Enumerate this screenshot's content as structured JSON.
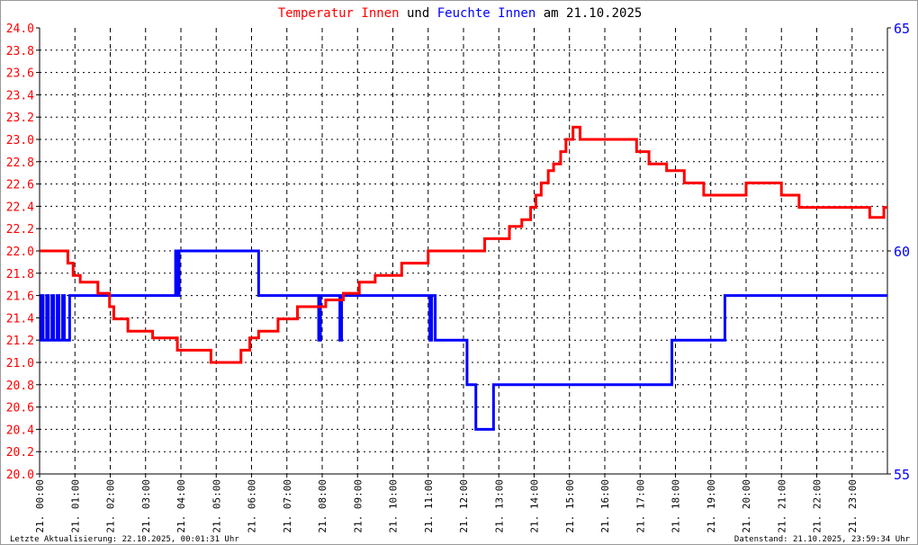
{
  "title": {
    "part1": "Temperatur Innen",
    "part2": "und",
    "part3": "Feuchte Innen",
    "part4": "am 21.10.2025"
  },
  "footer": {
    "left": "Letzte Aktualisierung: 22.10.2025, 00:01:31 Uhr",
    "right": "Datenstand: 21.10.2025, 23:59:34 Uhr"
  },
  "colors": {
    "temperature": "#ff0000",
    "humidity": "#0000ff",
    "grid": "#000000"
  },
  "chart_data": {
    "type": "line",
    "title": "Temperatur Innen und Feuchte Innen am 21.10.2025",
    "grid": true,
    "x_ticks": [
      "21. 00:00",
      "21. 01:00",
      "21. 02:00",
      "21. 03:00",
      "21. 04:00",
      "21. 05:00",
      "21. 06:00",
      "21. 07:00",
      "21. 08:00",
      "21. 09:00",
      "21. 10:00",
      "21. 11:00",
      "21. 12:00",
      "21. 13:00",
      "21. 14:00",
      "21. 15:00",
      "21. 16:00",
      "21. 17:00",
      "21. 18:00",
      "21. 19:00",
      "21. 20:00",
      "21. 21:00",
      "21. 22:00",
      "21. 23:00"
    ],
    "xlim_hours": [
      0,
      24
    ],
    "y_left": {
      "lim": [
        20.0,
        24.0
      ],
      "ticks": [
        "20.0",
        "20.2",
        "20.4",
        "20.6",
        "20.8",
        "21.0",
        "21.2",
        "21.4",
        "21.6",
        "21.8",
        "22.0",
        "22.2",
        "22.4",
        "22.6",
        "22.8",
        "23.0",
        "23.2",
        "23.4",
        "23.6",
        "23.8",
        "24.0"
      ]
    },
    "y_right": {
      "lim": [
        55,
        65
      ],
      "ticks": [
        "55",
        "60",
        "65"
      ]
    },
    "series": [
      {
        "name": "Temperatur Innen",
        "axis": "left",
        "step_points_hour_value": [
          [
            0,
            22.0
          ],
          [
            0.8,
            21.89
          ],
          [
            0.95,
            21.78
          ],
          [
            1.15,
            21.72
          ],
          [
            1.65,
            21.62
          ],
          [
            1.98,
            21.5
          ],
          [
            2.1,
            21.39
          ],
          [
            2.5,
            21.28
          ],
          [
            3.2,
            21.22
          ],
          [
            3.9,
            21.11
          ],
          [
            4.85,
            21.0
          ],
          [
            5.7,
            21.11
          ],
          [
            5.95,
            21.22
          ],
          [
            6.2,
            21.28
          ],
          [
            6.75,
            21.39
          ],
          [
            7.3,
            21.5
          ],
          [
            8.1,
            21.56
          ],
          [
            8.6,
            21.62
          ],
          [
            9.05,
            21.72
          ],
          [
            9.5,
            21.78
          ],
          [
            10.25,
            21.89
          ],
          [
            11.0,
            22.0
          ],
          [
            12.6,
            22.11
          ],
          [
            13.3,
            22.22
          ],
          [
            13.65,
            22.28
          ],
          [
            13.9,
            22.39
          ],
          [
            14.05,
            22.5
          ],
          [
            14.2,
            22.61
          ],
          [
            14.4,
            22.72
          ],
          [
            14.55,
            22.78
          ],
          [
            14.75,
            22.89
          ],
          [
            14.9,
            23.0
          ],
          [
            15.1,
            23.11
          ],
          [
            15.3,
            23.0
          ],
          [
            16.9,
            22.89
          ],
          [
            17.25,
            22.78
          ],
          [
            17.75,
            22.72
          ],
          [
            18.25,
            22.61
          ],
          [
            18.8,
            22.5
          ],
          [
            20.0,
            22.61
          ],
          [
            21.0,
            22.5
          ],
          [
            21.5,
            22.39
          ],
          [
            23.5,
            22.3
          ],
          [
            23.9,
            22.39
          ],
          [
            24,
            22.39
          ]
        ]
      },
      {
        "name": "Feuchte Innen",
        "axis": "right",
        "step_points_hour_value": [
          [
            0,
            58
          ],
          [
            0.05,
            59
          ],
          [
            0.1,
            58
          ],
          [
            0.2,
            59
          ],
          [
            0.25,
            58
          ],
          [
            0.35,
            59
          ],
          [
            0.4,
            58
          ],
          [
            0.5,
            59
          ],
          [
            0.55,
            58
          ],
          [
            0.65,
            59
          ],
          [
            0.7,
            58
          ],
          [
            0.85,
            59
          ],
          [
            3.85,
            60
          ],
          [
            3.9,
            59
          ],
          [
            3.95,
            60
          ],
          [
            6.2,
            59
          ],
          [
            7.9,
            58
          ],
          [
            7.95,
            59
          ],
          [
            8.5,
            58
          ],
          [
            8.55,
            59
          ],
          [
            11.05,
            58
          ],
          [
            11.1,
            59
          ],
          [
            11.2,
            58
          ],
          [
            12.1,
            57
          ],
          [
            12.35,
            56
          ],
          [
            12.85,
            57
          ],
          [
            17.9,
            58
          ],
          [
            19.4,
            59
          ],
          [
            24,
            59
          ]
        ]
      }
    ]
  }
}
